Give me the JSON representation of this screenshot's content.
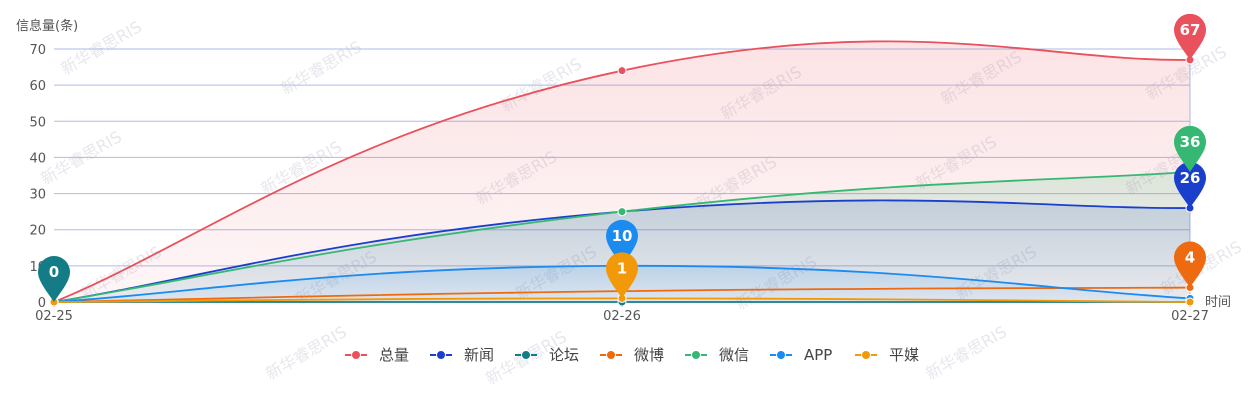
{
  "chart_data": {
    "type": "area",
    "ylabel": "信息量(条)",
    "xlabel": "时间",
    "categories": [
      "02-25",
      "02-26",
      "02-27"
    ],
    "ylim": [
      0,
      70
    ],
    "yticks": [
      0,
      10,
      20,
      30,
      40,
      50,
      60,
      70
    ],
    "grid": true,
    "legend_position": "bottom",
    "watermark": "新华睿思RIS",
    "series": [
      {
        "name": "总量",
        "values": [
          0,
          64,
          67
        ],
        "color": "#e9515c",
        "fill": true,
        "pin": {
          "index": 2,
          "value": "67"
        }
      },
      {
        "name": "新闻",
        "values": [
          0,
          25,
          26
        ],
        "color": "#1a3fcc",
        "fill": true,
        "pin": {
          "index": 2,
          "value": "26"
        }
      },
      {
        "name": "论坛",
        "values": [
          0,
          0,
          0
        ],
        "color": "#137c86",
        "fill": false,
        "pin": {
          "index": 0,
          "value": "0"
        }
      },
      {
        "name": "微博",
        "values": [
          0,
          3,
          4
        ],
        "color": "#ee6a10",
        "fill": false,
        "pin": {
          "index": 2,
          "value": "4"
        }
      },
      {
        "name": "微信",
        "values": [
          0,
          25,
          36
        ],
        "color": "#36b873",
        "fill": true,
        "pin": {
          "index": 2,
          "value": "36"
        }
      },
      {
        "name": "APP",
        "values": [
          0,
          10,
          1
        ],
        "color": "#1b8bf0",
        "fill": true,
        "pin": {
          "index": 1,
          "value": "10"
        }
      },
      {
        "name": "平媒",
        "values": [
          0,
          1,
          0
        ],
        "color": "#f2990a",
        "fill": false,
        "pin": {
          "index": 1,
          "value": "1"
        }
      }
    ]
  }
}
